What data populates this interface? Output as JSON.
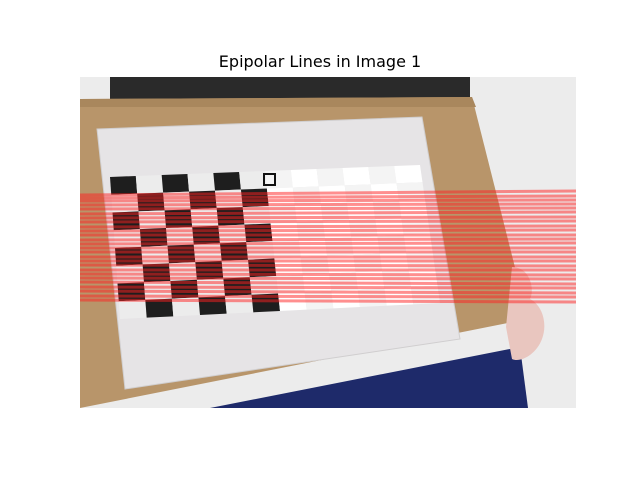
{
  "chart_data": {
    "type": "image_overlay",
    "title": "Epipolar Lines in Image 1",
    "xlabel": "",
    "ylabel": "",
    "grid": false,
    "line_color": "#ff2020",
    "image_description_colors": {
      "board": "#c09868",
      "paper": "#e6e4e6",
      "dark_square": "#1e1e1e",
      "background_wall": "#ececec",
      "sleeve": "#1e2a6a",
      "hand": "#e9c6bf"
    },
    "checker_rows": 8,
    "checker_cols": 12,
    "epipolar_lines_y": [
      [
        118,
        114
      ],
      [
        121,
        119
      ],
      [
        124,
        123
      ],
      [
        128,
        127
      ],
      [
        132,
        131
      ],
      [
        137,
        135
      ],
      [
        141,
        140
      ],
      [
        145,
        144
      ],
      [
        150,
        149
      ],
      [
        154,
        153
      ],
      [
        158,
        158
      ],
      [
        163,
        162
      ],
      [
        167,
        166
      ],
      [
        171,
        171
      ],
      [
        175,
        175
      ],
      [
        180,
        180
      ],
      [
        184,
        184
      ],
      [
        188,
        189
      ],
      [
        193,
        193
      ],
      [
        197,
        198
      ],
      [
        201,
        202
      ],
      [
        205,
        207
      ],
      [
        210,
        211
      ],
      [
        214,
        216
      ],
      [
        219,
        220
      ],
      [
        223,
        225
      ]
    ]
  }
}
